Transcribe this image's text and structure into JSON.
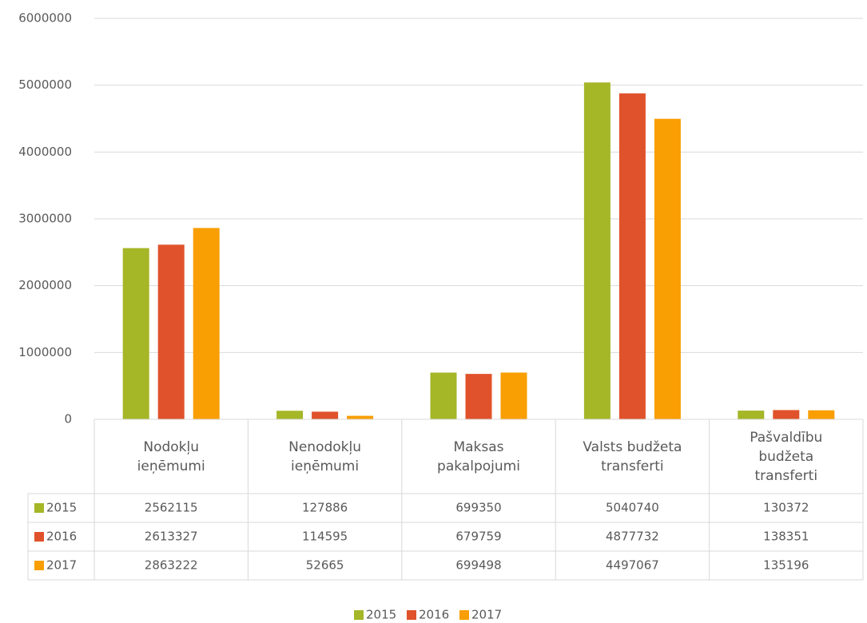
{
  "chart_data": {
    "type": "bar",
    "categories": [
      "Nodokļu ieņēmumi",
      "Nenodokļu ieņēmumi",
      "Maksas pakalpojumi",
      "Valsts budžeta transferti",
      "Pašvaldību budžeta transferti"
    ],
    "series": [
      {
        "name": "2015",
        "color": "#a5b627",
        "values": [
          2562115,
          127886,
          699350,
          5040740,
          130372
        ]
      },
      {
        "name": "2016",
        "color": "#e0522b",
        "values": [
          2613327,
          114595,
          679759,
          4877732,
          138351
        ]
      },
      {
        "name": "2017",
        "color": "#f99e03",
        "values": [
          2863222,
          52665,
          699498,
          4497067,
          135196
        ]
      }
    ],
    "ylim": [
      0,
      6000000
    ],
    "yticks": [
      0,
      1000000,
      2000000,
      3000000,
      4000000,
      5000000,
      6000000
    ],
    "grid": true,
    "legend": "bottom",
    "data_table": true
  }
}
